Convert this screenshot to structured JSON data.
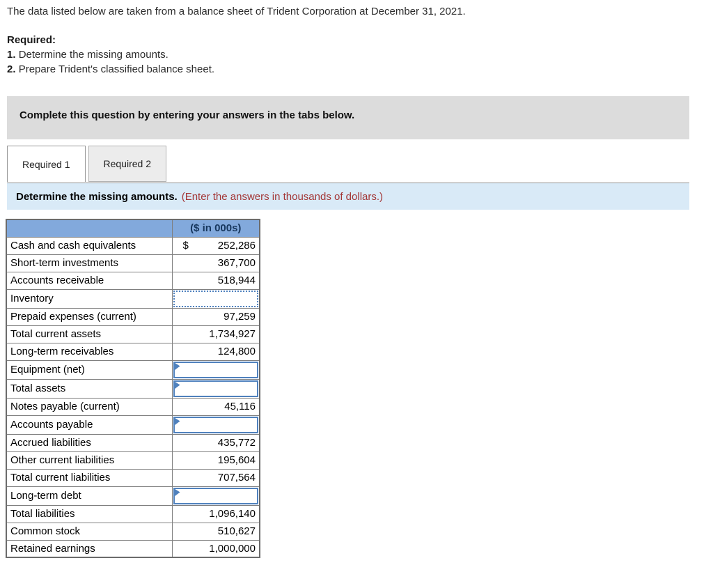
{
  "intro": "The data listed below are taken from a balance sheet of Trident Corporation at December 31, 2021.",
  "required": {
    "label": "Required:",
    "items": [
      {
        "num": "1.",
        "text": "Determine the missing amounts."
      },
      {
        "num": "2.",
        "text": "Prepare Trident's classified balance sheet."
      }
    ]
  },
  "instruction_box": {
    "text": "Complete this question by entering your answers in the tabs below."
  },
  "tabs": [
    {
      "label": "Required 1",
      "active": true
    },
    {
      "label": "Required 2",
      "active": false
    }
  ],
  "prompt": {
    "text": "Determine the missing amounts.",
    "note": "(Enter the answers in thousands of dollars.)"
  },
  "table": {
    "header": {
      "label": "",
      "value": "($ in 000s)"
    },
    "rows": [
      {
        "label": "Cash and cash equivalents",
        "prefix": "$",
        "value": "252,286",
        "type": "value"
      },
      {
        "label": "Short-term investments",
        "value": "367,700",
        "type": "value"
      },
      {
        "label": "Accounts receivable",
        "value": "518,944",
        "type": "value"
      },
      {
        "label": "Inventory",
        "value": "",
        "type": "input-focused"
      },
      {
        "label": "Prepaid expenses (current)",
        "value": "97,259",
        "type": "value"
      },
      {
        "label": "Total current assets",
        "value": "1,734,927",
        "type": "value"
      },
      {
        "label": "Long-term receivables",
        "value": "124,800",
        "type": "value"
      },
      {
        "label": "Equipment (net)",
        "value": "",
        "type": "input"
      },
      {
        "label": "Total assets",
        "value": "",
        "type": "input"
      },
      {
        "label": "Notes payable (current)",
        "value": "45,116",
        "type": "value"
      },
      {
        "label": "Accounts payable",
        "value": "",
        "type": "input"
      },
      {
        "label": "Accrued liabilities",
        "value": "435,772",
        "type": "value"
      },
      {
        "label": "Other current liabilities",
        "value": "195,604",
        "type": "value"
      },
      {
        "label": "Total current liabilities",
        "value": "707,564",
        "type": "value"
      },
      {
        "label": "Long-term debt",
        "value": "",
        "type": "input"
      },
      {
        "label": "Total liabilities",
        "value": "1,096,140",
        "type": "value"
      },
      {
        "label": "Common stock",
        "value": "510,627",
        "type": "value"
      },
      {
        "label": "Retained earnings",
        "value": "1,000,000",
        "type": "value"
      }
    ]
  },
  "colors": {
    "table_header_blue": "#82a9dc",
    "header_text_navy": "#17375e",
    "input_border_blue": "#4f81bd",
    "prompt_bar_blue": "#d9eaf7",
    "note_red": "#a33636",
    "instruction_box_gray": "#dcdcdc"
  }
}
